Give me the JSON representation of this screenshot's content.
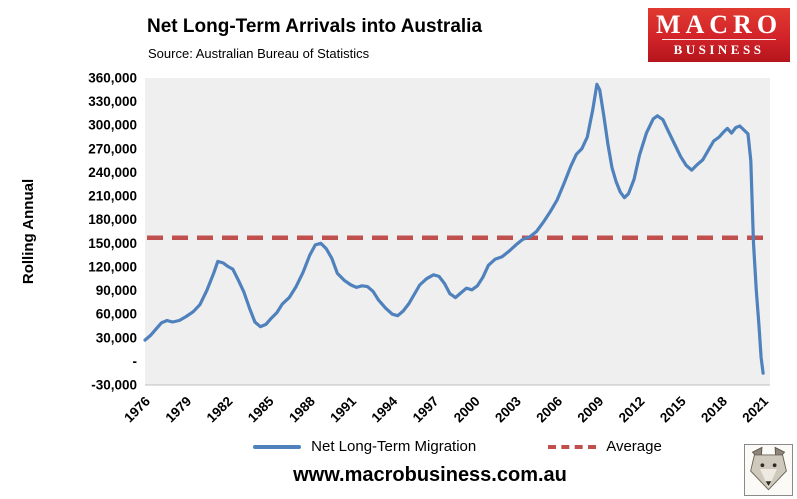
{
  "logo": {
    "line1": "MACRO",
    "line2": "BUSINESS",
    "bg_color": "#d2232a"
  },
  "footer": {
    "url": "www.macrobusiness.com.au"
  },
  "chart_data": {
    "type": "line",
    "title": "Net Long-Term Arrivals into Australia",
    "subtitle": "Source: Australian Bureau of Statistics",
    "ylabel": "Rolling Annual",
    "xlabel": "",
    "ylim": [
      -30000,
      360000
    ],
    "xlim": [
      1976,
      2021.5
    ],
    "plot_bg": "#efefef",
    "grid": false,
    "legend_position": "bottom",
    "y_ticks": [
      360000,
      330000,
      300000,
      270000,
      240000,
      210000,
      180000,
      150000,
      120000,
      90000,
      60000,
      30000,
      0,
      -30000
    ],
    "y_tick_labels": [
      "360,000",
      "330,000",
      "300,000",
      "270,000",
      "240,000",
      "210,000",
      "180,000",
      "150,000",
      "120,000",
      "90,000",
      "60,000",
      "30,000",
      "-",
      "-30,000"
    ],
    "x_ticks": [
      1976,
      1979,
      1982,
      1985,
      1988,
      1991,
      1994,
      1997,
      2000,
      2003,
      2006,
      2009,
      2012,
      2015,
      2018,
      2021
    ],
    "series": [
      {
        "name": "Net Long-Term Migration",
        "color": "#4f81bd",
        "style": "solid",
        "points": [
          [
            1976.0,
            27000
          ],
          [
            1976.4,
            33000
          ],
          [
            1976.8,
            41000
          ],
          [
            1977.2,
            49000
          ],
          [
            1977.6,
            52000
          ],
          [
            1978.0,
            50000
          ],
          [
            1978.5,
            52000
          ],
          [
            1979.0,
            57000
          ],
          [
            1979.5,
            63000
          ],
          [
            1980.0,
            72000
          ],
          [
            1980.5,
            90000
          ],
          [
            1981.0,
            112000
          ],
          [
            1981.3,
            127000
          ],
          [
            1981.7,
            125000
          ],
          [
            1982.0,
            121000
          ],
          [
            1982.4,
            117000
          ],
          [
            1982.8,
            103000
          ],
          [
            1983.2,
            88000
          ],
          [
            1983.6,
            68000
          ],
          [
            1984.0,
            50000
          ],
          [
            1984.4,
            44000
          ],
          [
            1984.8,
            47000
          ],
          [
            1985.2,
            55000
          ],
          [
            1985.6,
            62000
          ],
          [
            1986.0,
            73000
          ],
          [
            1986.5,
            81000
          ],
          [
            1987.0,
            95000
          ],
          [
            1987.5,
            113000
          ],
          [
            1988.0,
            135000
          ],
          [
            1988.4,
            148000
          ],
          [
            1988.8,
            150000
          ],
          [
            1989.2,
            143000
          ],
          [
            1989.6,
            131000
          ],
          [
            1990.0,
            112000
          ],
          [
            1990.5,
            103000
          ],
          [
            1991.0,
            97000
          ],
          [
            1991.4,
            94000
          ],
          [
            1991.8,
            96000
          ],
          [
            1992.2,
            95000
          ],
          [
            1992.6,
            89000
          ],
          [
            1993.0,
            78000
          ],
          [
            1993.5,
            68000
          ],
          [
            1994.0,
            60000
          ],
          [
            1994.4,
            58000
          ],
          [
            1994.8,
            64000
          ],
          [
            1995.2,
            73000
          ],
          [
            1995.6,
            85000
          ],
          [
            1996.0,
            97000
          ],
          [
            1996.5,
            105000
          ],
          [
            1997.0,
            110000
          ],
          [
            1997.4,
            108000
          ],
          [
            1997.8,
            99000
          ],
          [
            1998.2,
            86000
          ],
          [
            1998.6,
            81000
          ],
          [
            1999.0,
            87000
          ],
          [
            1999.4,
            93000
          ],
          [
            1999.8,
            91000
          ],
          [
            2000.2,
            96000
          ],
          [
            2000.6,
            107000
          ],
          [
            2001.0,
            122000
          ],
          [
            2001.5,
            130000
          ],
          [
            2002.0,
            133000
          ],
          [
            2002.5,
            140000
          ],
          [
            2003.0,
            148000
          ],
          [
            2003.5,
            155000
          ],
          [
            2004.0,
            158000
          ],
          [
            2004.5,
            165000
          ],
          [
            2005.0,
            177000
          ],
          [
            2005.5,
            190000
          ],
          [
            2006.0,
            205000
          ],
          [
            2006.5,
            226000
          ],
          [
            2007.0,
            248000
          ],
          [
            2007.4,
            263000
          ],
          [
            2007.8,
            270000
          ],
          [
            2008.2,
            285000
          ],
          [
            2008.6,
            320000
          ],
          [
            2008.9,
            352000
          ],
          [
            2009.1,
            345000
          ],
          [
            2009.4,
            312000
          ],
          [
            2009.7,
            276000
          ],
          [
            2010.0,
            246000
          ],
          [
            2010.3,
            228000
          ],
          [
            2010.6,
            215000
          ],
          [
            2010.9,
            208000
          ],
          [
            2011.2,
            213000
          ],
          [
            2011.6,
            231000
          ],
          [
            2012.0,
            262000
          ],
          [
            2012.5,
            290000
          ],
          [
            2013.0,
            308000
          ],
          [
            2013.3,
            312000
          ],
          [
            2013.7,
            307000
          ],
          [
            2014.0,
            296000
          ],
          [
            2014.5,
            278000
          ],
          [
            2015.0,
            260000
          ],
          [
            2015.4,
            249000
          ],
          [
            2015.8,
            243000
          ],
          [
            2016.2,
            250000
          ],
          [
            2016.6,
            256000
          ],
          [
            2017.0,
            268000
          ],
          [
            2017.4,
            280000
          ],
          [
            2017.8,
            285000
          ],
          [
            2018.1,
            291000
          ],
          [
            2018.4,
            296000
          ],
          [
            2018.7,
            290000
          ],
          [
            2019.0,
            297000
          ],
          [
            2019.3,
            299000
          ],
          [
            2019.6,
            294000
          ],
          [
            2019.9,
            289000
          ],
          [
            2020.1,
            255000
          ],
          [
            2020.3,
            150000
          ],
          [
            2020.5,
            90000
          ],
          [
            2020.7,
            45000
          ],
          [
            2020.85,
            5000
          ],
          [
            2021.0,
            -15000
          ]
        ]
      },
      {
        "name": "Average",
        "color": "#c0504d",
        "style": "dashed",
        "y_value": 157000
      }
    ]
  }
}
